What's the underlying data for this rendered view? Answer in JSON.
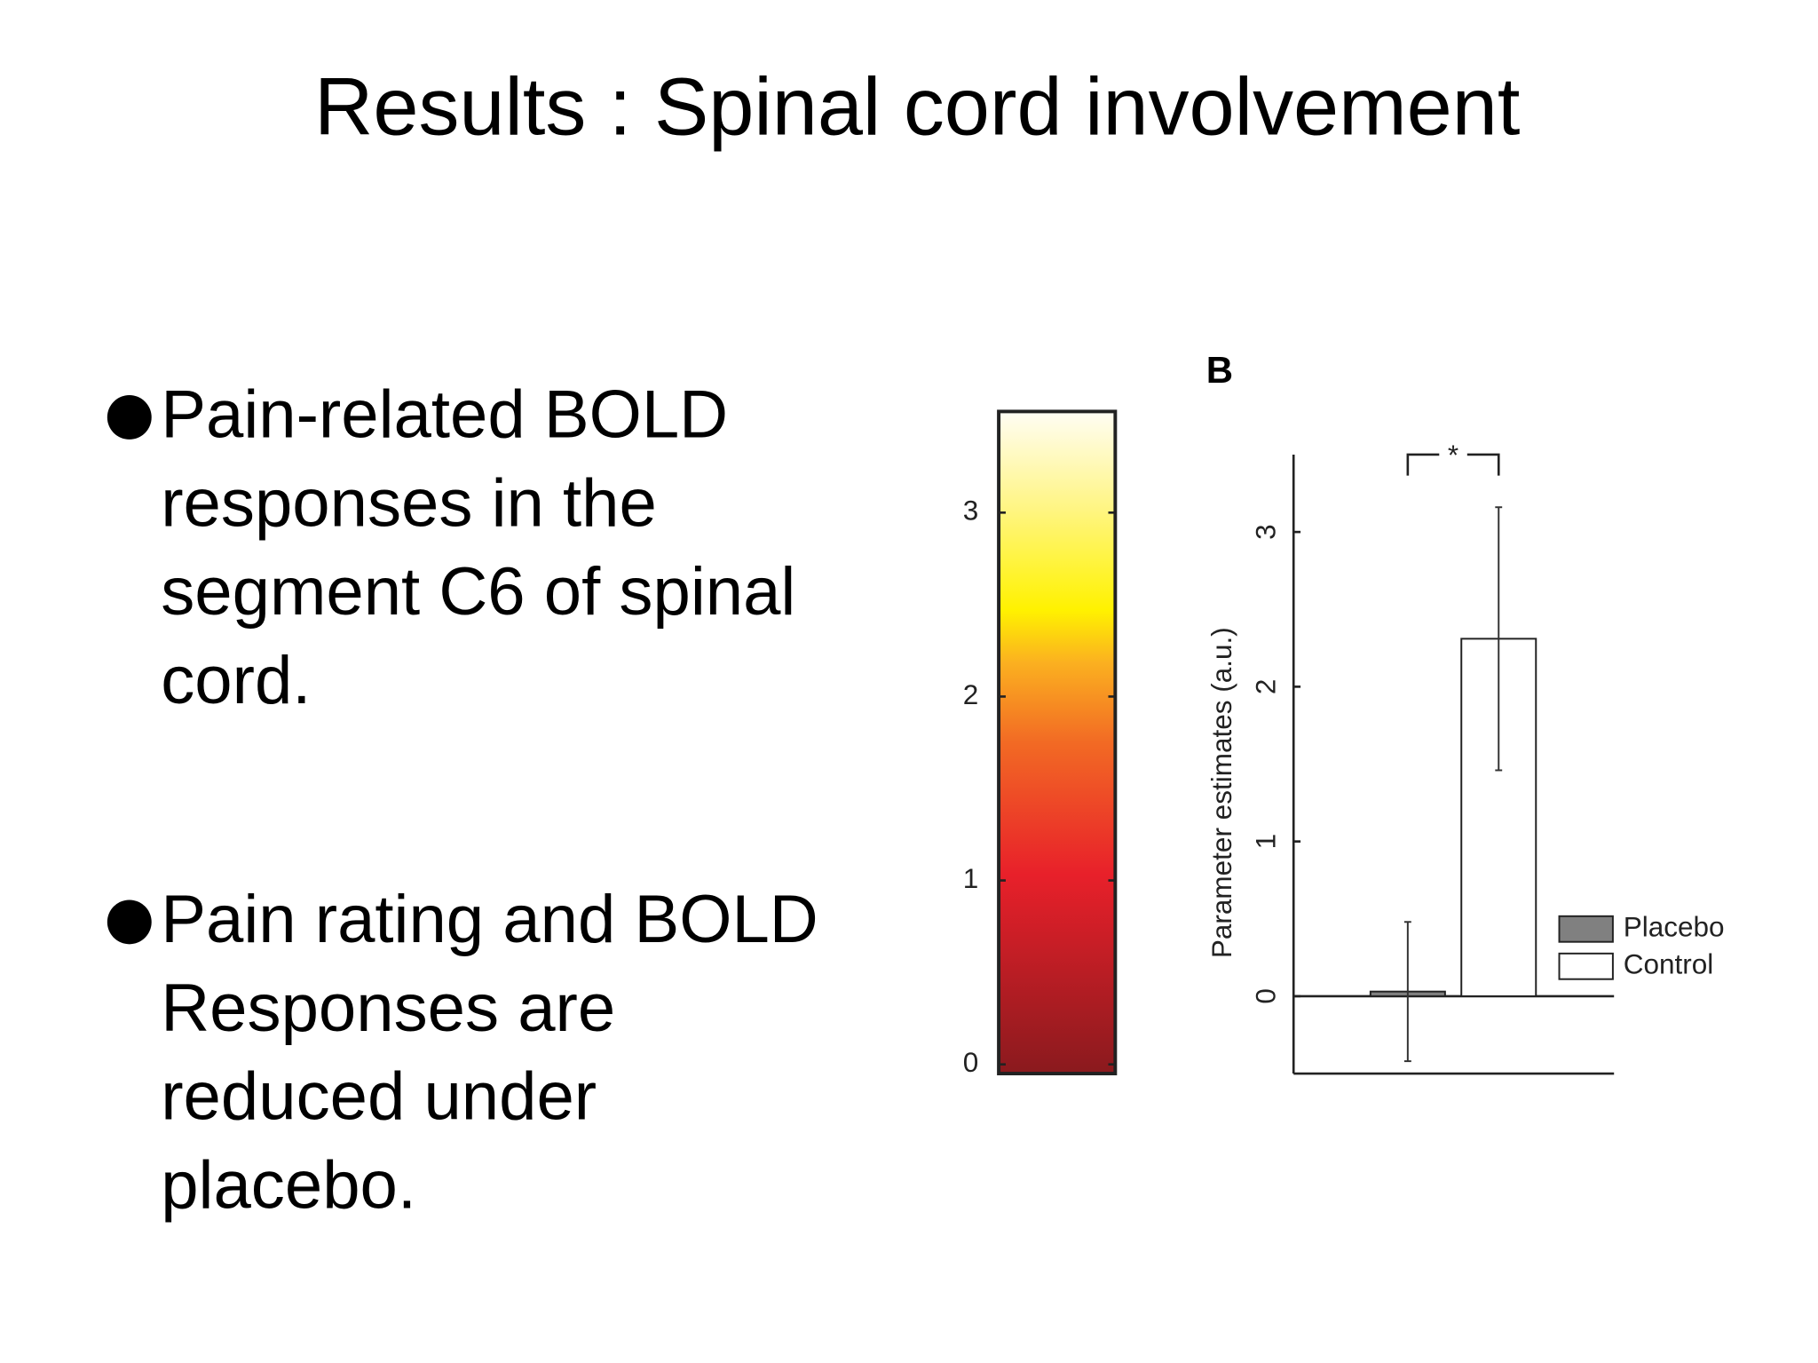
{
  "title": "Results : Spinal cord involvement",
  "bullets": [
    {
      "lines": [
        "Pain-related BOLD",
        "responses in the",
        "segment C6 of spinal",
        "cord."
      ]
    },
    {
      "lines": [
        "Pain rating and BOLD",
        "Responses are",
        "reduced under",
        "placebo."
      ]
    }
  ],
  "chart_data": [
    {
      "type": "colorbar",
      "ylim": [
        -0.05,
        3.55
      ],
      "yticks": [
        0,
        1,
        2,
        3
      ]
    },
    {
      "type": "bar",
      "panel_label": "B",
      "ylabel": "Parameter estimates (a.u.)",
      "series": [
        {
          "name": "Placebo",
          "color": "#808080",
          "values": [
            0.03
          ],
          "errors": [
            0.45
          ]
        },
        {
          "name": "Control",
          "color": "#ffffff",
          "values": [
            2.31
          ],
          "errors": [
            0.85
          ]
        }
      ],
      "annotation": "*",
      "ylim": [
        -0.5,
        3.5
      ],
      "yticks": [
        0,
        1,
        2,
        3
      ]
    }
  ]
}
